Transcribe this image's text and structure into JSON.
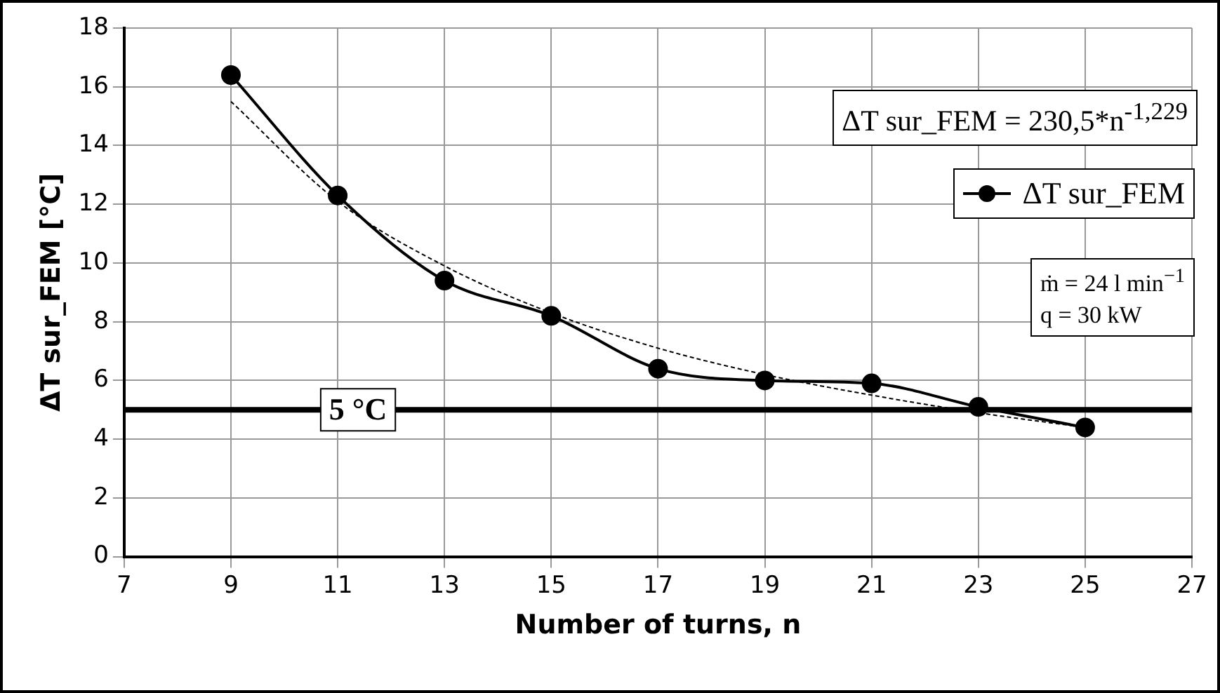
{
  "chart_data": {
    "type": "line",
    "xlabel": "Number of turns, n",
    "ylabel": "ΔT sur_FEM [°C]",
    "x": [
      9,
      11,
      13,
      15,
      17,
      19,
      21,
      23,
      25
    ],
    "series": [
      {
        "name": "ΔT sur_FEM",
        "color": "#000000",
        "values": [
          16.4,
          12.3,
          9.4,
          8.2,
          6.4,
          6.0,
          5.9,
          5.1,
          4.4
        ],
        "marker": "circle",
        "line_style": "solid"
      },
      {
        "type": "line",
        "color": "#000000",
        "x": [
          9,
          11,
          13,
          15,
          17,
          19,
          21,
          23,
          25
        ],
        "values": [
          15.5,
          12.1,
          9.9,
          8.3,
          7.1,
          6.2,
          5.5,
          4.9,
          4.4
        ],
        "marker": "none",
        "line_style": "dashed"
      }
    ],
    "xlim": [
      7,
      27
    ],
    "xticks": [
      7,
      9,
      11,
      13,
      15,
      17,
      19,
      21,
      23,
      25,
      27
    ],
    "ylim": [
      0,
      18
    ],
    "yticks": [
      0,
      2,
      4,
      6,
      8,
      10,
      12,
      14,
      16,
      18
    ],
    "grid": true,
    "legend": "right",
    "ref_lines": [
      {
        "axis": "y",
        "value": 5,
        "label": "5 °C",
        "color": "#000000",
        "line_style": "solid"
      }
    ],
    "annotations": [
      "ΔT sur_FEM = 230,5*n$^{-1,229}$",
      "ṁ = 24 l min$^{−1}$\nq = 30 kW"
    ]
  }
}
